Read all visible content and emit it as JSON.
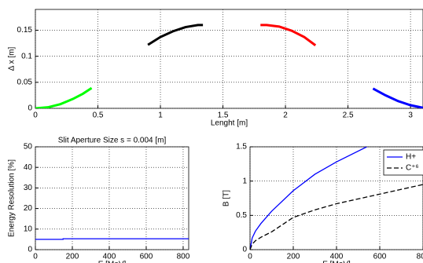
{
  "chart_data": [
    {
      "type": "line",
      "x_label": "Lenght [m]",
      "y_label": "Δ x [m]",
      "xlim": [
        0,
        3.1
      ],
      "ylim": [
        0,
        0.19
      ],
      "xticks": [
        0,
        0.5,
        1,
        1.5,
        2,
        2.5,
        3
      ],
      "yticks": [
        0,
        0.05,
        0.1,
        0.15
      ],
      "grid": true,
      "series": [
        {
          "color": "#00ff00",
          "x": [
            0,
            0.1,
            0.2,
            0.3,
            0.38,
            0.45
          ],
          "values": [
            0,
            0.002,
            0.008,
            0.018,
            0.028,
            0.039
          ]
        },
        {
          "color": "#000000",
          "x": [
            0.9,
            1.0,
            1.1,
            1.2,
            1.3,
            1.34
          ],
          "values": [
            0.122,
            0.137,
            0.148,
            0.156,
            0.16,
            0.16
          ]
        },
        {
          "color": "#ff0000",
          "x": [
            1.8,
            1.85,
            1.95,
            2.05,
            2.15,
            2.24
          ],
          "values": [
            0.16,
            0.16,
            0.157,
            0.149,
            0.137,
            0.121
          ]
        },
        {
          "color": "#0000ff",
          "x": [
            2.7,
            2.8,
            2.9,
            3.0,
            3.1
          ],
          "values": [
            0.038,
            0.025,
            0.014,
            0.006,
            0.001
          ]
        }
      ]
    },
    {
      "type": "line",
      "title": "Slit Aperture Size s = 0.004 [m]",
      "x_label": "E [MeV]",
      "y_label": "Energy Resolution [%]",
      "xlim": [
        0,
        830
      ],
      "ylim": [
        0,
        50
      ],
      "xticks": [
        0,
        200,
        400,
        600,
        800
      ],
      "yticks": [
        0,
        10,
        20,
        30,
        40,
        50
      ],
      "grid": true,
      "series": [
        {
          "color": "#0000ff",
          "x": [
            0,
            150,
            150,
            830
          ],
          "values": [
            5,
            5,
            5.3,
            5.3
          ]
        }
      ]
    },
    {
      "type": "line",
      "x_label": "E [MeV]",
      "y_label": "B [T]",
      "xlim": [
        0,
        800
      ],
      "ylim": [
        0,
        1.5
      ],
      "xticks": [
        0,
        200,
        400,
        600,
        800
      ],
      "yticks": [
        0,
        0.5,
        1,
        1.5
      ],
      "grid": true,
      "legend": "top-right",
      "series": [
        {
          "name": "H+",
          "color": "#0000ff",
          "linestyle": "solid",
          "x": [
            0,
            10,
            25,
            50,
            100,
            200,
            300,
            400,
            540
          ],
          "values": [
            0,
            0.17,
            0.27,
            0.38,
            0.56,
            0.86,
            1.1,
            1.28,
            1.5
          ]
        },
        {
          "name": "C⁺⁶",
          "color": "#000000",
          "linestyle": "dashed",
          "x": [
            0,
            10,
            25,
            50,
            100,
            200,
            300,
            400,
            600,
            800
          ],
          "values": [
            0,
            0.08,
            0.13,
            0.18,
            0.26,
            0.47,
            0.58,
            0.67,
            0.81,
            0.95
          ]
        }
      ]
    }
  ]
}
